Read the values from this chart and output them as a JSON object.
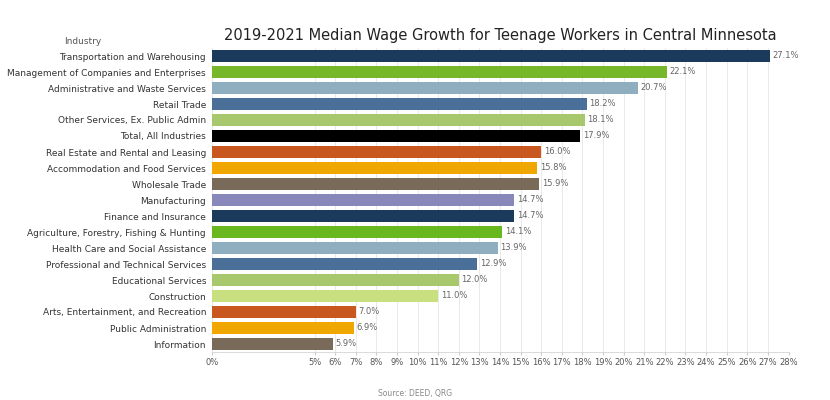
{
  "title": "2019-2021 Median Wage Growth for Teenage Workers in Central Minnesota",
  "xlabel_label": "Industry",
  "source": "Source: DEED, QRG",
  "categories": [
    "Transportation and Warehousing",
    "Management of Companies and Enterprises",
    "Administrative and Waste Services",
    "Retail Trade",
    "Other Services, Ex. Public Admin",
    "Total, All Industries",
    "Real Estate and Rental and Leasing",
    "Accommodation and Food Services",
    "Wholesale Trade",
    "Manufacturing",
    "Finance and Insurance",
    "Agriculture, Forestry, Fishing & Hunting",
    "Health Care and Social Assistance",
    "Professional and Technical Services",
    "Educational Services",
    "Construction",
    "Arts, Entertainment, and Recreation",
    "Public Administration",
    "Information"
  ],
  "values": [
    27.1,
    22.1,
    20.7,
    18.2,
    18.1,
    17.9,
    16.0,
    15.8,
    15.9,
    14.7,
    14.7,
    14.1,
    13.9,
    12.9,
    12.0,
    11.0,
    7.0,
    6.9,
    5.9
  ],
  "labels": [
    "27.1%",
    "22.1%",
    "20.7%",
    "18.2%",
    "18.1%",
    "17.9%",
    "16.0%",
    "15.8%",
    "15.9%",
    "14.7%",
    "14.7%",
    "14.1%",
    "13.9%",
    "12.9%",
    "12.0%",
    "11.0%",
    "7.0%",
    "6.9%",
    "5.9%"
  ],
  "colors": [
    "#1b3a5c",
    "#76b82a",
    "#8fafc0",
    "#4a7099",
    "#a8c86e",
    "#000000",
    "#c85820",
    "#f0a800",
    "#7a6a5a",
    "#8888bb",
    "#1b3a5c",
    "#6ab820",
    "#8fafc0",
    "#4a7099",
    "#a8c86e",
    "#c8e080",
    "#c85820",
    "#f0a800",
    "#7a6a5a"
  ],
  "xlim_max": 28,
  "xtick_values": [
    0,
    5,
    6,
    7,
    8,
    9,
    10,
    11,
    12,
    13,
    14,
    15,
    16,
    17,
    18,
    19,
    20,
    21,
    22,
    23,
    24,
    25,
    26,
    27,
    28
  ],
  "xtick_labels": [
    "0%",
    "5%",
    "6%",
    "7%",
    "8%",
    "9%",
    "10%",
    "11%",
    "12%",
    "13%",
    "14%",
    "15%",
    "16%",
    "17%",
    "18%",
    "19%",
    "20%",
    "21%",
    "22%",
    "23%",
    "24%",
    "25%",
    "26%",
    "27%",
    "28%"
  ],
  "background_color": "#ffffff",
  "bar_height": 0.7,
  "label_fontsize": 6.0,
  "title_fontsize": 10.5,
  "axis_label_fontsize": 6.5,
  "tick_fontsize": 6.0,
  "ytick_fontsize": 6.5
}
